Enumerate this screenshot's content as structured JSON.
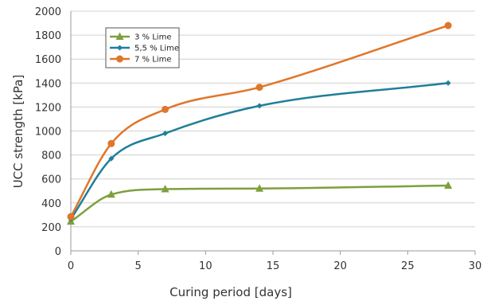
{
  "chart_data": {
    "type": "line",
    "title": "",
    "xlabel": "Curing period [days]",
    "ylabel": "UCC strength [kPa]",
    "xlim": [
      0,
      30
    ],
    "ylim": [
      0,
      2000
    ],
    "xticks": [
      0,
      5,
      10,
      15,
      20,
      25,
      30
    ],
    "yticks": [
      0,
      200,
      400,
      600,
      800,
      1000,
      1200,
      1400,
      1600,
      1800,
      2000
    ],
    "grid": true,
    "legend": "top-left",
    "smooth": true,
    "series": [
      {
        "name": "3 % Lime",
        "color": "#7da03c",
        "marker": "triangle",
        "x": [
          0,
          3,
          7,
          14,
          28
        ],
        "y": [
          245,
          470,
          515,
          520,
          545
        ]
      },
      {
        "name": "5,5 % Lime",
        "color": "#1f7f99",
        "marker": "diamond",
        "x": [
          0,
          3,
          7,
          14,
          28
        ],
        "y": [
          265,
          770,
          980,
          1210,
          1400
        ]
      },
      {
        "name": "7 % Lime",
        "color": "#e0762b",
        "marker": "circle",
        "x": [
          0,
          3,
          7,
          14,
          28
        ],
        "y": [
          285,
          895,
          1180,
          1365,
          1880
        ]
      }
    ]
  }
}
